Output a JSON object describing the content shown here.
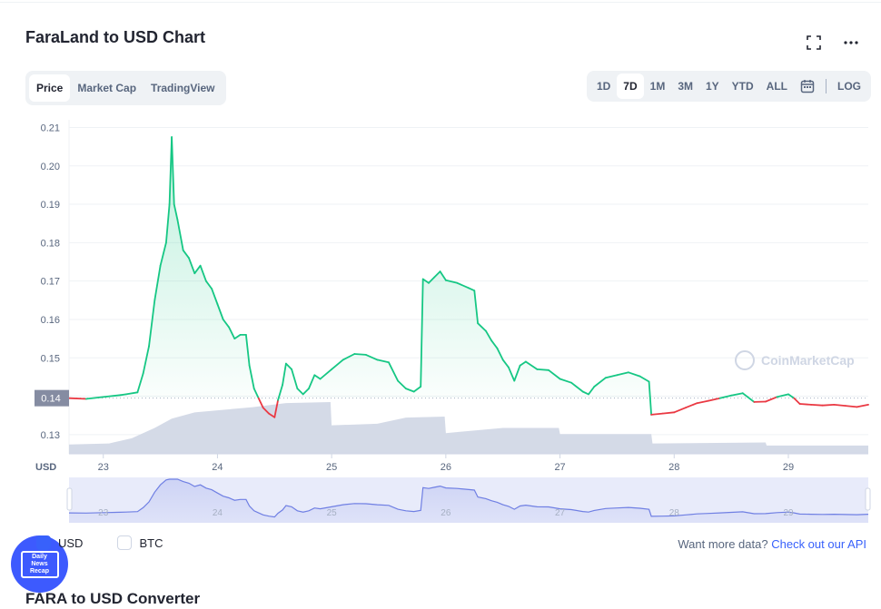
{
  "title": "FaraLand to USD Chart",
  "toolbar": {
    "fullscreen_icon": "fullscreen-icon",
    "more_icon": "more-dots-icon"
  },
  "tabs": [
    {
      "label": "Price",
      "active": true
    },
    {
      "label": "Market Cap",
      "active": false
    },
    {
      "label": "TradingView",
      "active": false
    }
  ],
  "ranges": [
    {
      "label": "1D",
      "active": false
    },
    {
      "label": "7D",
      "active": true
    },
    {
      "label": "1M",
      "active": false
    },
    {
      "label": "3M",
      "active": false
    },
    {
      "label": "1Y",
      "active": false
    },
    {
      "label": "YTD",
      "active": false
    },
    {
      "label": "ALL",
      "active": false
    }
  ],
  "calendar_icon": "calendar-icon",
  "log_label": "LOG",
  "watermark": "CoinMarketCap",
  "chart_data": {
    "type": "line",
    "currency_label": "USD",
    "current_price_label": "0.14",
    "reference_price": 0.1395,
    "y_ticks": [
      "0.21",
      "0.20",
      "0.19",
      "0.18",
      "0.17",
      "0.16",
      "0.15",
      "0.14",
      "0.13"
    ],
    "ylim": [
      0.125,
      0.212
    ],
    "x_ticks": [
      "23",
      "24",
      "25",
      "26",
      "27",
      "28",
      "29"
    ],
    "xlim": [
      22.7,
      29.7
    ],
    "colors": {
      "up": "#16c784",
      "down": "#ea3943",
      "volume": "#cfd6e4",
      "navigator": "#6f7fe3"
    },
    "series": [
      {
        "values": [
          [
            22.7,
            0.1395
          ],
          [
            22.85,
            0.1393
          ],
          [
            23.0,
            0.1398
          ],
          [
            23.15,
            0.1403
          ],
          [
            23.2,
            0.1405
          ],
          [
            23.3,
            0.141
          ],
          [
            23.35,
            0.146
          ],
          [
            23.4,
            0.153
          ],
          [
            23.45,
            0.165
          ],
          [
            23.5,
            0.174
          ],
          [
            23.55,
            0.18
          ],
          [
            23.58,
            0.19
          ],
          [
            23.6,
            0.2075
          ],
          [
            23.62,
            0.19
          ],
          [
            23.65,
            0.186
          ],
          [
            23.7,
            0.178
          ],
          [
            23.75,
            0.176
          ],
          [
            23.8,
            0.172
          ],
          [
            23.85,
            0.174
          ],
          [
            23.9,
            0.17
          ],
          [
            23.95,
            0.168
          ],
          [
            24.0,
            0.164
          ],
          [
            24.05,
            0.16
          ],
          [
            24.1,
            0.158
          ],
          [
            24.15,
            0.155
          ],
          [
            24.2,
            0.156
          ],
          [
            24.25,
            0.156
          ],
          [
            24.28,
            0.148
          ],
          [
            24.32,
            0.142
          ],
          [
            24.36,
            0.1395
          ],
          [
            24.4,
            0.137
          ],
          [
            24.45,
            0.1355
          ],
          [
            24.5,
            0.1345
          ],
          [
            24.53,
            0.139
          ],
          [
            24.57,
            0.143
          ],
          [
            24.6,
            0.1485
          ],
          [
            24.65,
            0.147
          ],
          [
            24.7,
            0.142
          ],
          [
            24.75,
            0.1405
          ],
          [
            24.8,
            0.142
          ],
          [
            24.85,
            0.1455
          ],
          [
            24.9,
            0.1445
          ],
          [
            25.0,
            0.147
          ],
          [
            25.1,
            0.1495
          ],
          [
            25.2,
            0.151
          ],
          [
            25.3,
            0.1508
          ],
          [
            25.4,
            0.1495
          ],
          [
            25.5,
            0.1488
          ],
          [
            25.58,
            0.144
          ],
          [
            25.65,
            0.142
          ],
          [
            25.72,
            0.1412
          ],
          [
            25.78,
            0.1425
          ],
          [
            25.8,
            0.1705
          ],
          [
            25.85,
            0.1695
          ],
          [
            25.9,
            0.171
          ],
          [
            25.95,
            0.1725
          ],
          [
            26.0,
            0.1702
          ],
          [
            26.1,
            0.1695
          ],
          [
            26.2,
            0.1682
          ],
          [
            26.25,
            0.1675
          ],
          [
            26.28,
            0.159
          ],
          [
            26.35,
            0.157
          ],
          [
            26.4,
            0.1545
          ],
          [
            26.45,
            0.1525
          ],
          [
            26.5,
            0.1495
          ],
          [
            26.55,
            0.1475
          ],
          [
            26.6,
            0.144
          ],
          [
            26.65,
            0.148
          ],
          [
            26.7,
            0.149
          ],
          [
            26.8,
            0.147
          ],
          [
            26.9,
            0.1468
          ],
          [
            27.0,
            0.1445
          ],
          [
            27.1,
            0.1435
          ],
          [
            27.2,
            0.1412
          ],
          [
            27.25,
            0.1405
          ],
          [
            27.3,
            0.1425
          ],
          [
            27.4,
            0.1448
          ],
          [
            27.5,
            0.1455
          ],
          [
            27.6,
            0.1462
          ],
          [
            27.7,
            0.1452
          ],
          [
            27.78,
            0.1438
          ],
          [
            27.8,
            0.1352
          ],
          [
            27.9,
            0.1355
          ],
          [
            28.0,
            0.1358
          ],
          [
            28.1,
            0.137
          ],
          [
            28.2,
            0.1382
          ],
          [
            28.3,
            0.1388
          ],
          [
            28.4,
            0.1395
          ],
          [
            28.5,
            0.1402
          ],
          [
            28.6,
            0.1408
          ],
          [
            28.7,
            0.1385
          ],
          [
            28.8,
            0.1386
          ],
          [
            28.9,
            0.1398
          ],
          [
            29.0,
            0.1405
          ],
          [
            29.05,
            0.1395
          ],
          [
            29.1,
            0.138
          ],
          [
            29.2,
            0.1378
          ],
          [
            29.3,
            0.1376
          ],
          [
            29.4,
            0.1378
          ],
          [
            29.5,
            0.1375
          ],
          [
            29.6,
            0.1372
          ],
          [
            29.7,
            0.1378
          ]
        ]
      }
    ],
    "volume": [
      [
        22.7,
        0.18
      ],
      [
        23.05,
        0.2
      ],
      [
        23.25,
        0.3
      ],
      [
        23.45,
        0.5
      ],
      [
        23.6,
        0.68
      ],
      [
        23.8,
        0.8
      ],
      [
        24.0,
        0.84
      ],
      [
        24.3,
        0.9
      ],
      [
        24.6,
        0.98
      ],
      [
        24.99,
        1.0
      ],
      [
        25.0,
        0.55
      ],
      [
        25.4,
        0.58
      ],
      [
        25.65,
        0.7
      ],
      [
        25.99,
        0.72
      ],
      [
        26.0,
        0.4
      ],
      [
        26.5,
        0.5
      ],
      [
        26.99,
        0.5
      ],
      [
        27.0,
        0.38
      ],
      [
        27.8,
        0.38
      ],
      [
        27.81,
        0.2
      ],
      [
        28.8,
        0.22
      ],
      [
        28.81,
        0.16
      ],
      [
        29.7,
        0.16
      ]
    ]
  },
  "legend": [
    {
      "label": "USD",
      "checked": true
    },
    {
      "label": "BTC",
      "checked": false
    }
  ],
  "api_prompt": "Want more data?",
  "api_link": "Check out our API",
  "converter_title": "FARA to USD Converter",
  "badge": {
    "line1": "Daily",
    "line2": "News",
    "line3": "Recap"
  }
}
